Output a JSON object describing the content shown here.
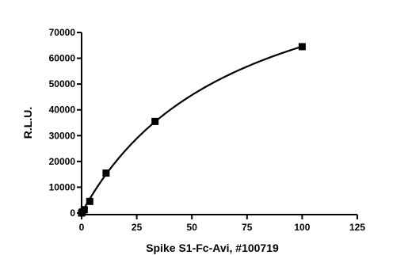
{
  "chart_data": {
    "type": "scatter",
    "title": "",
    "xlabel": "Spike S1-Fc-Avi, #100719",
    "ylabel": "R.L.U.",
    "xlim": [
      0,
      125
    ],
    "ylim": [
      0,
      70000
    ],
    "x_ticks": [
      0,
      25,
      50,
      75,
      100,
      125
    ],
    "x_tick_labels": [
      "0",
      "25",
      "50",
      "75",
      "100",
      "125"
    ],
    "y_ticks": [
      0,
      10000,
      20000,
      30000,
      40000,
      50000,
      60000,
      70000
    ],
    "y_tick_labels": [
      "0",
      "10000",
      "20000",
      "30000",
      "40000",
      "50000",
      "60000",
      "70000"
    ],
    "grid": false,
    "legend": "none",
    "marker": "square",
    "fit": "saturation curve",
    "series": [
      {
        "x": [
          0,
          0.4,
          1.2,
          3.7,
          11.1,
          33.3,
          100
        ],
        "y": [
          0,
          400,
          1300,
          4500,
          15500,
          35500,
          64500
        ]
      }
    ]
  }
}
